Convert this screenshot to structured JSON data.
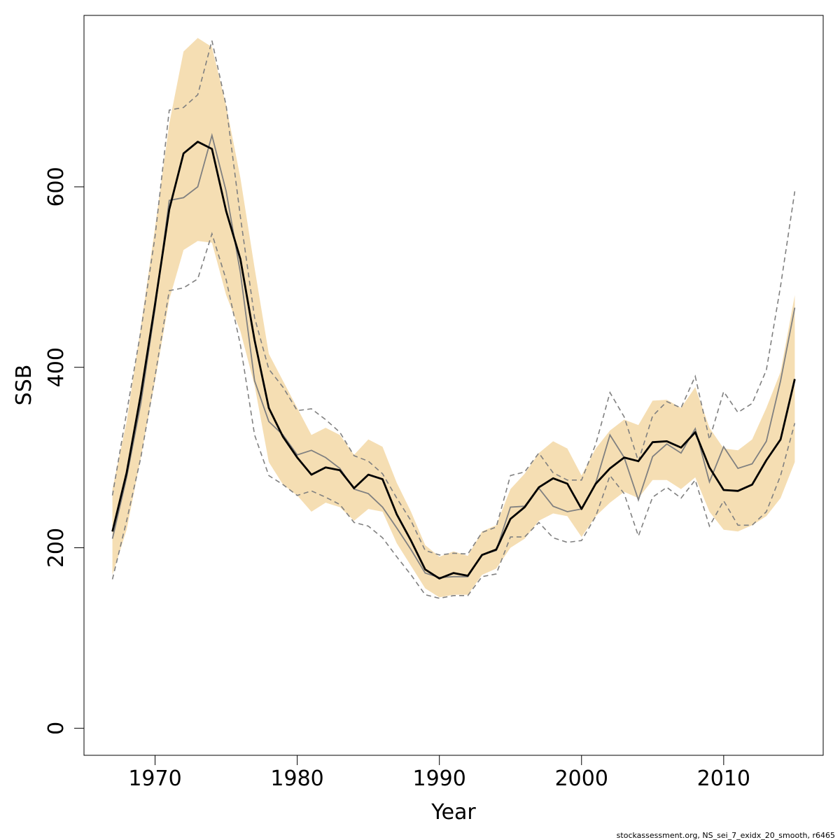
{
  "chart_data": {
    "type": "line",
    "xlabel": "Year",
    "ylabel": "SSB",
    "xlim": [
      1965,
      2017
    ],
    "ylim": [
      -30,
      790
    ],
    "x_ticks": [
      1970,
      1980,
      1990,
      2000,
      2010
    ],
    "y_ticks": [
      0,
      200,
      400,
      600
    ],
    "grid": false,
    "years": [
      1967,
      1968,
      1969,
      1970,
      1971,
      1972,
      1973,
      1974,
      1975,
      1976,
      1977,
      1978,
      1979,
      1980,
      1981,
      1982,
      1983,
      1984,
      1985,
      1986,
      1987,
      1988,
      1989,
      1990,
      1991,
      1992,
      1993,
      1994,
      1995,
      1996,
      1997,
      1998,
      1999,
      2000,
      2001,
      2002,
      2003,
      2004,
      2005,
      2006,
      2007,
      2008,
      2009,
      2010,
      2011,
      2012,
      2013,
      2014,
      2015
    ],
    "series": [
      {
        "role": "estimate",
        "color": "#000000",
        "values": [
          218,
          283,
          370,
          470,
          575,
          637,
          650,
          642,
          573,
          520,
          430,
          355,
          323,
          300,
          281,
          289,
          286,
          266,
          281,
          276,
          237,
          208,
          176,
          166,
          172,
          169,
          192,
          198,
          232,
          245,
          267,
          277,
          271,
          243,
          271,
          288,
          300,
          296,
          317,
          318,
          311,
          328,
          289,
          264,
          263,
          270,
          297,
          320,
          387
        ]
      },
      {
        "role": "ci-lower",
        "values": [
          170,
          220,
          300,
          385,
          475,
          530,
          540,
          538,
          480,
          440,
          380,
          295,
          270,
          258,
          240,
          250,
          245,
          230,
          243,
          240,
          205,
          180,
          155,
          145,
          148,
          148,
          170,
          177,
          200,
          210,
          230,
          238,
          235,
          212,
          235,
          250,
          262,
          255,
          275,
          275,
          265,
          278,
          240,
          220,
          218,
          225,
          235,
          255,
          295
        ]
      },
      {
        "role": "ci-upper",
        "values": [
          265,
          340,
          445,
          555,
          670,
          750,
          765,
          755,
          690,
          610,
          510,
          415,
          385,
          355,
          325,
          333,
          325,
          303,
          320,
          312,
          272,
          240,
          203,
          190,
          196,
          191,
          218,
          225,
          265,
          282,
          305,
          318,
          310,
          280,
          310,
          330,
          342,
          336,
          363,
          364,
          355,
          378,
          333,
          310,
          308,
          320,
          355,
          395,
          480
        ]
      },
      {
        "role": "retrospective-solid",
        "color": "#808080",
        "values": [
          210,
          278,
          360,
          465,
          585,
          588,
          600,
          657,
          595,
          505,
          385,
          340,
          325,
          303,
          308,
          300,
          288,
          265,
          260,
          245,
          222,
          198,
          172,
          167,
          168,
          168,
          192,
          197,
          245,
          246,
          266,
          246,
          240,
          243,
          272,
          325,
          300,
          253,
          301,
          315,
          305,
          332,
          273,
          312,
          288,
          293,
          318,
          385,
          466
        ]
      },
      {
        "role": "retrospective-dashed-upper",
        "color": "#808080",
        "values": [
          258,
          350,
          440,
          545,
          685,
          688,
          702,
          762,
          690,
          567,
          455,
          398,
          378,
          352,
          354,
          342,
          328,
          302,
          296,
          282,
          255,
          230,
          197,
          192,
          194,
          193,
          217,
          223,
          280,
          284,
          305,
          283,
          275,
          275,
          315,
          372,
          345,
          296,
          346,
          362,
          355,
          390,
          320,
          373,
          350,
          360,
          397,
          490,
          595
        ]
      },
      {
        "role": "retrospective-dashed-lower",
        "color": "#808080",
        "values": [
          165,
          230,
          300,
          390,
          485,
          488,
          498,
          548,
          497,
          425,
          325,
          280,
          270,
          258,
          263,
          256,
          248,
          228,
          224,
          211,
          190,
          170,
          148,
          144,
          147,
          147,
          168,
          171,
          212,
          212,
          228,
          211,
          206,
          208,
          235,
          280,
          260,
          213,
          256,
          267,
          255,
          275,
          224,
          252,
          225,
          225,
          240,
          280,
          338
        ]
      }
    ],
    "band_color": "#f5deb3"
  },
  "footer_text": "stockassessment.org, NS_sei_7_exidx_20_smooth, r6465"
}
